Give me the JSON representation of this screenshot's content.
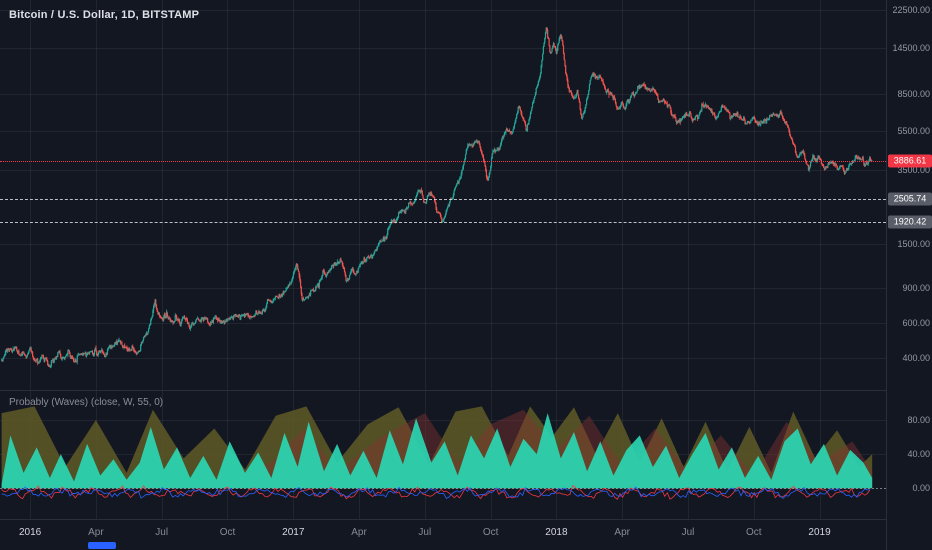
{
  "header": {
    "symbol_title": "Bitcoin / U.S. Dollar, 1D, BITSTAMP"
  },
  "indicator_panel": {
    "label": "Probably (Waves) (close, W, 55, 0)"
  },
  "colors": {
    "background": "#131722",
    "grid": "rgba(242,245,250,0.065)",
    "up": "#26a69a",
    "down": "#ef5350",
    "axis_text": "#939aa6",
    "last_price": "#f23645",
    "level_badge_bg": "#585d68",
    "dashed_level": "rgba(236,238,242,0.78)",
    "logo_blue": "#2962ff",
    "zero_line": "rgba(205,209,217,0.55)"
  },
  "time_axis": {
    "labels": [
      {
        "text": "2016",
        "m": 0,
        "major": true
      },
      {
        "text": "Apr",
        "m": 3,
        "major": false
      },
      {
        "text": "Jul",
        "m": 6,
        "major": false
      },
      {
        "text": "Oct",
        "m": 9,
        "major": false
      },
      {
        "text": "2017",
        "m": 12,
        "major": true
      },
      {
        "text": "Apr",
        "m": 15,
        "major": false
      },
      {
        "text": "Jul",
        "m": 18,
        "major": false
      },
      {
        "text": "Oct",
        "m": 21,
        "major": false
      },
      {
        "text": "2018",
        "m": 24,
        "major": true
      },
      {
        "text": "Apr",
        "m": 27,
        "major": false
      },
      {
        "text": "Jul",
        "m": 30,
        "major": false
      },
      {
        "text": "Oct",
        "m": 33,
        "major": false
      },
      {
        "text": "2019",
        "m": 36,
        "major": true
      }
    ]
  },
  "chart_data": {
    "type": "candlestick",
    "title": "Bitcoin / U.S. Dollar",
    "interval": "1D",
    "exchange": "BITSTAMP",
    "seed": 1337,
    "x_map": {
      "frac_at_jan2016": 0.034,
      "frac_per_month": 0.02475,
      "m_start": -1.3,
      "m_end": 38.4
    },
    "price_scale": {
      "log": true,
      "ylim": [
        275,
        25200
      ],
      "ticks": [
        22500,
        14500,
        8500,
        5500,
        3500,
        1500,
        900,
        600,
        400
      ]
    },
    "levels": [
      {
        "value": 3886.61,
        "label": "3886.61",
        "style": "dotted",
        "color": "#f23645",
        "role": "last-price"
      },
      {
        "value": 2505.74,
        "label": "2505.74",
        "style": "dashed",
        "color": "#e9ebef",
        "role": "level"
      },
      {
        "value": 1920.42,
        "label": "1920.42",
        "style": "dashed",
        "color": "#e9ebef",
        "role": "level"
      }
    ],
    "candles": {
      "anchors": [
        [
          -1.3,
          385
        ],
        [
          -1.0,
          432
        ],
        [
          -0.65,
          462
        ],
        [
          -0.35,
          436
        ],
        [
          0.1,
          434
        ],
        [
          0.5,
          400
        ],
        [
          0.9,
          374
        ],
        [
          1.3,
          392
        ],
        [
          1.8,
          418
        ],
        [
          2.3,
          416
        ],
        [
          2.9,
          420
        ],
        [
          3.5,
          432
        ],
        [
          4.2,
          448
        ],
        [
          4.9,
          458
        ],
        [
          5.35,
          530
        ],
        [
          5.65,
          762
        ],
        [
          5.85,
          668
        ],
        [
          6.2,
          672
        ],
        [
          6.6,
          655
        ],
        [
          7.1,
          610
        ],
        [
          7.6,
          588
        ],
        [
          8.2,
          572
        ],
        [
          8.8,
          608
        ],
        [
          9.4,
          632
        ],
        [
          10.1,
          700
        ],
        [
          10.7,
          740
        ],
        [
          11.3,
          780
        ],
        [
          11.8,
          870
        ],
        [
          12.05,
          1000
        ],
        [
          12.15,
          1110
        ],
        [
          12.4,
          792
        ],
        [
          12.8,
          915
        ],
        [
          13.3,
          1005
        ],
        [
          13.8,
          1185
        ],
        [
          14.15,
          1250
        ],
        [
          14.45,
          975
        ],
        [
          14.8,
          1080
        ],
        [
          15.3,
          1195
        ],
        [
          15.8,
          1345
        ],
        [
          16.2,
          1540
        ],
        [
          16.55,
          1990
        ],
        [
          16.85,
          2310
        ],
        [
          17.1,
          2190
        ],
        [
          17.45,
          2540
        ],
        [
          17.75,
          2920
        ],
        [
          18.05,
          2480
        ],
        [
          18.35,
          2600
        ],
        [
          18.6,
          2280
        ],
        [
          18.78,
          1890
        ],
        [
          19.05,
          2260
        ],
        [
          19.35,
          2760
        ],
        [
          19.65,
          3240
        ],
        [
          19.9,
          4360
        ],
        [
          20.2,
          4620
        ],
        [
          20.45,
          4930
        ],
        [
          20.68,
          3620
        ],
        [
          20.85,
          3060
        ],
        [
          21.1,
          4320
        ],
        [
          21.4,
          4420
        ],
        [
          21.65,
          5220
        ],
        [
          21.9,
          5760
        ],
        [
          22.1,
          6160
        ],
        [
          22.3,
          7320
        ],
        [
          22.48,
          6580
        ],
        [
          22.62,
          5920
        ],
        [
          22.9,
          8120
        ],
        [
          23.1,
          9920
        ],
        [
          23.28,
          11620
        ],
        [
          23.44,
          16850
        ],
        [
          23.54,
          19420
        ],
        [
          23.72,
          13600
        ],
        [
          23.86,
          15600
        ],
        [
          24.0,
          14100
        ],
        [
          24.18,
          16880
        ],
        [
          24.35,
          12800
        ],
        [
          24.55,
          9350
        ],
        [
          24.75,
          8300
        ],
        [
          24.95,
          8800
        ],
        [
          25.15,
          6250
        ],
        [
          25.35,
          7700
        ],
        [
          25.55,
          10200
        ],
        [
          25.7,
          11080
        ],
        [
          25.95,
          10350
        ],
        [
          26.2,
          8600
        ],
        [
          26.5,
          7950
        ],
        [
          26.85,
          6900
        ],
        [
          27.1,
          7480
        ],
        [
          27.45,
          7980
        ],
        [
          27.75,
          9640
        ],
        [
          28.05,
          9360
        ],
        [
          28.35,
          8480
        ],
        [
          28.65,
          7520
        ],
        [
          28.95,
          7620
        ],
        [
          29.25,
          6420
        ],
        [
          29.45,
          6180
        ],
        [
          29.7,
          6720
        ],
        [
          30.0,
          6380
        ],
        [
          30.25,
          6280
        ],
        [
          30.55,
          7420
        ],
        [
          30.8,
          8180
        ],
        [
          31.05,
          7020
        ],
        [
          31.3,
          6320
        ],
        [
          31.6,
          7060
        ],
        [
          31.9,
          6480
        ],
        [
          32.2,
          6720
        ],
        [
          32.55,
          6580
        ],
        [
          33.0,
          6460
        ],
        [
          33.5,
          6370
        ],
        [
          34.0,
          6420
        ],
        [
          34.35,
          6320
        ],
        [
          34.6,
          5580
        ],
        [
          34.8,
          4420
        ],
        [
          35.0,
          3880
        ],
        [
          35.25,
          4120
        ],
        [
          35.5,
          3280
        ],
        [
          35.7,
          3820
        ],
        [
          35.95,
          4080
        ],
        [
          36.15,
          3720
        ],
        [
          36.45,
          3560
        ],
        [
          36.7,
          3480
        ],
        [
          37.0,
          3420
        ],
        [
          37.3,
          3640
        ],
        [
          37.6,
          3860
        ],
        [
          37.9,
          3700
        ],
        [
          38.15,
          3820
        ],
        [
          38.4,
          3887
        ]
      ]
    },
    "indicator": {
      "name": "Probably (Waves)",
      "params": "(close, W, 55, 0)",
      "ylim": [
        -36,
        114
      ],
      "ticks": [
        80,
        40,
        0
      ],
      "waves": [
        {
          "name": "slow-wave",
          "color": "rgba(92,86,38,0.9)",
          "points": [
            [
              -1.3,
              88
            ],
            [
              0.2,
              96
            ],
            [
              1.6,
              25
            ],
            [
              3.0,
              80
            ],
            [
              4.4,
              18
            ],
            [
              5.6,
              92
            ],
            [
              7.0,
              35
            ],
            [
              8.4,
              70
            ],
            [
              9.8,
              22
            ],
            [
              11.2,
              85
            ],
            [
              12.6,
              96
            ],
            [
              14.0,
              30
            ],
            [
              15.4,
              75
            ],
            [
              16.8,
              95
            ],
            [
              18.2,
              28
            ],
            [
              19.4,
              90
            ],
            [
              20.6,
              96
            ],
            [
              21.8,
              38
            ],
            [
              22.8,
              96
            ],
            [
              23.8,
              60
            ],
            [
              24.8,
              95
            ],
            [
              25.8,
              40
            ],
            [
              26.8,
              88
            ],
            [
              27.8,
              30
            ],
            [
              28.8,
              82
            ],
            [
              29.8,
              25
            ],
            [
              30.8,
              78
            ],
            [
              31.8,
              20
            ],
            [
              32.8,
              72
            ],
            [
              33.8,
              18
            ],
            [
              34.8,
              90
            ],
            [
              35.8,
              35
            ],
            [
              36.8,
              68
            ],
            [
              37.8,
              25
            ],
            [
              38.4,
              40
            ]
          ]
        },
        {
          "name": "mid-wave",
          "color": "rgba(128,52,48,0.45)",
          "points": [
            [
              -1.3,
              0
            ],
            [
              4,
              10
            ],
            [
              8,
              6
            ],
            [
              11,
              30
            ],
            [
              12.5,
              70
            ],
            [
              14,
              20
            ],
            [
              16,
              60
            ],
            [
              18,
              88
            ],
            [
              19.5,
              30
            ],
            [
              21,
              75
            ],
            [
              22.5,
              92
            ],
            [
              24,
              45
            ],
            [
              25.5,
              85
            ],
            [
              27,
              25
            ],
            [
              28.5,
              70
            ],
            [
              30,
              20
            ],
            [
              31.5,
              62
            ],
            [
              33,
              15
            ],
            [
              34.5,
              78
            ],
            [
              36,
              30
            ],
            [
              37.5,
              55
            ],
            [
              38.4,
              20
            ]
          ]
        },
        {
          "name": "fast-wave",
          "color": "rgba(42,214,178,0.92)",
          "points": [
            [
              -1.3,
              5
            ],
            [
              -0.9,
              62
            ],
            [
              -0.3,
              18
            ],
            [
              0.3,
              48
            ],
            [
              0.9,
              12
            ],
            [
              1.4,
              40
            ],
            [
              2.0,
              8
            ],
            [
              2.6,
              52
            ],
            [
              3.2,
              15
            ],
            [
              3.8,
              34
            ],
            [
              4.4,
              10
            ],
            [
              5.0,
              30
            ],
            [
              5.5,
              72
            ],
            [
              6.1,
              22
            ],
            [
              6.7,
              48
            ],
            [
              7.3,
              12
            ],
            [
              7.9,
              38
            ],
            [
              8.5,
              10
            ],
            [
              9.1,
              55
            ],
            [
              9.8,
              18
            ],
            [
              10.4,
              42
            ],
            [
              11.0,
              12
            ],
            [
              11.6,
              65
            ],
            [
              12.2,
              25
            ],
            [
              12.7,
              78
            ],
            [
              13.4,
              20
            ],
            [
              14.0,
              52
            ],
            [
              14.6,
              15
            ],
            [
              15.2,
              44
            ],
            [
              15.8,
              12
            ],
            [
              16.4,
              68
            ],
            [
              17.0,
              28
            ],
            [
              17.6,
              82
            ],
            [
              18.3,
              30
            ],
            [
              18.9,
              55
            ],
            [
              19.5,
              15
            ],
            [
              20.1,
              62
            ],
            [
              20.7,
              35
            ],
            [
              21.3,
              70
            ],
            [
              21.9,
              25
            ],
            [
              22.5,
              58
            ],
            [
              23.1,
              40
            ],
            [
              23.6,
              88
            ],
            [
              24.2,
              35
            ],
            [
              24.8,
              66
            ],
            [
              25.4,
              20
            ],
            [
              26.0,
              55
            ],
            [
              26.6,
              15
            ],
            [
              27.2,
              45
            ],
            [
              27.8,
              62
            ],
            [
              28.4,
              25
            ],
            [
              29.0,
              50
            ],
            [
              29.6,
              12
            ],
            [
              30.2,
              40
            ],
            [
              30.8,
              65
            ],
            [
              31.4,
              22
            ],
            [
              32.0,
              48
            ],
            [
              32.6,
              12
            ],
            [
              33.2,
              38
            ],
            [
              33.8,
              10
            ],
            [
              34.4,
              55
            ],
            [
              35.0,
              70
            ],
            [
              35.6,
              28
            ],
            [
              36.2,
              52
            ],
            [
              36.8,
              15
            ],
            [
              37.4,
              45
            ],
            [
              38.0,
              30
            ],
            [
              38.4,
              12
            ]
          ]
        }
      ],
      "lines": [
        {
          "name": "signal-red",
          "color": "#f23645"
        },
        {
          "name": "signal-blue",
          "color": "#2962ff"
        }
      ]
    }
  }
}
